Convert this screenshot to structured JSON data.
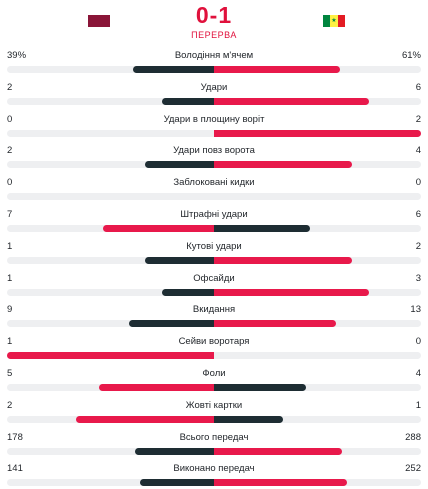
{
  "match": {
    "score": "0-1",
    "period": "ПЕРЕРВА",
    "home_flag_icon": "qatar-flag-icon",
    "away_flag_icon": "senegal-flag-icon"
  },
  "colors": {
    "score": "#e0113c",
    "bar_dark": "#1e2d33",
    "bar_red": "#e8194b",
    "track": "#eeeff1"
  },
  "stats": [
    {
      "label": "Володіння м'ячем",
      "home": "39%",
      "away": "61%",
      "home_share": 0.39,
      "away_share": 0.61,
      "home_color": "dark",
      "away_color": "red"
    },
    {
      "label": "Удари",
      "home": "2",
      "away": "6",
      "home_share": 0.25,
      "away_share": 0.75,
      "home_color": "dark",
      "away_color": "red"
    },
    {
      "label": "Удари в площину воріт",
      "home": "0",
      "away": "2",
      "home_share": 0,
      "away_share": 1,
      "home_color": "dark",
      "away_color": "red"
    },
    {
      "label": "Удари повз ворота",
      "home": "2",
      "away": "4",
      "home_share": 0.3333,
      "away_share": 0.6667,
      "home_color": "dark",
      "away_color": "red"
    },
    {
      "label": "Заблоковані кидки",
      "home": "0",
      "away": "0",
      "home_share": 0,
      "away_share": 0,
      "home_color": "dark",
      "away_color": "red"
    },
    {
      "label": "Штрафні удари",
      "home": "7",
      "away": "6",
      "home_share": 0.5385,
      "away_share": 0.4615,
      "home_color": "red",
      "away_color": "dark"
    },
    {
      "label": "Кутові удари",
      "home": "1",
      "away": "2",
      "home_share": 0.3333,
      "away_share": 0.6667,
      "home_color": "dark",
      "away_color": "red"
    },
    {
      "label": "Офсайди",
      "home": "1",
      "away": "3",
      "home_share": 0.25,
      "away_share": 0.75,
      "home_color": "dark",
      "away_color": "red"
    },
    {
      "label": "Вкидання",
      "home": "9",
      "away": "13",
      "home_share": 0.4091,
      "away_share": 0.5909,
      "home_color": "dark",
      "away_color": "red"
    },
    {
      "label": "Сейви воротаря",
      "home": "1",
      "away": "0",
      "home_share": 1,
      "away_share": 0,
      "home_color": "red",
      "away_color": "dark"
    },
    {
      "label": "Фоли",
      "home": "5",
      "away": "4",
      "home_share": 0.5556,
      "away_share": 0.4444,
      "home_color": "red",
      "away_color": "dark"
    },
    {
      "label": "Жовті картки",
      "home": "2",
      "away": "1",
      "home_share": 0.6667,
      "away_share": 0.3333,
      "home_color": "red",
      "away_color": "dark"
    },
    {
      "label": "Всього передач",
      "home": "178",
      "away": "288",
      "home_share": 0.382,
      "away_share": 0.618,
      "home_color": "dark",
      "away_color": "red"
    },
    {
      "label": "Виконано передач",
      "home": "141",
      "away": "252",
      "home_share": 0.3588,
      "away_share": 0.6412,
      "home_color": "dark",
      "away_color": "red"
    }
  ]
}
